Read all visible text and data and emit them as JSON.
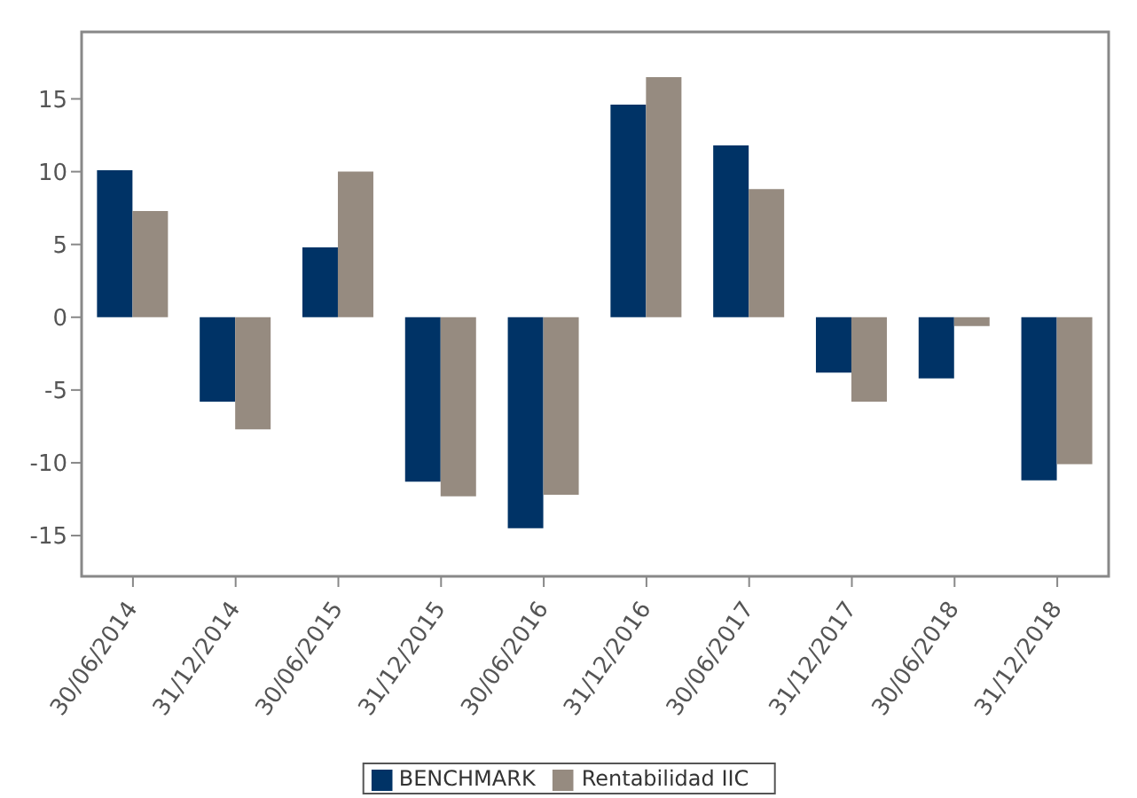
{
  "chart_data": {
    "type": "bar",
    "categories": [
      "30/06/2014",
      "31/12/2014",
      "30/06/2015",
      "31/12/2015",
      "30/06/2016",
      "31/12/2016",
      "30/06/2017",
      "31/12/2017",
      "30/06/2018",
      "31/12/2018"
    ],
    "series": [
      {
        "name": "BENCHMARK",
        "color": "#003366",
        "values": [
          10.1,
          -5.8,
          4.8,
          -11.3,
          -14.5,
          14.6,
          11.8,
          -3.8,
          -4.2,
          -11.2
        ]
      },
      {
        "name": "Rentabilidad IIC",
        "color": "#968b80",
        "values": [
          7.3,
          -7.7,
          10.0,
          -12.3,
          -12.2,
          16.5,
          8.8,
          -5.8,
          -0.6,
          -10.1
        ]
      }
    ],
    "ylim": [
      -17.8,
      19.6
    ],
    "yticks": [
      -15,
      -10,
      -5,
      0,
      5,
      10,
      15
    ],
    "legend": "bottom"
  }
}
